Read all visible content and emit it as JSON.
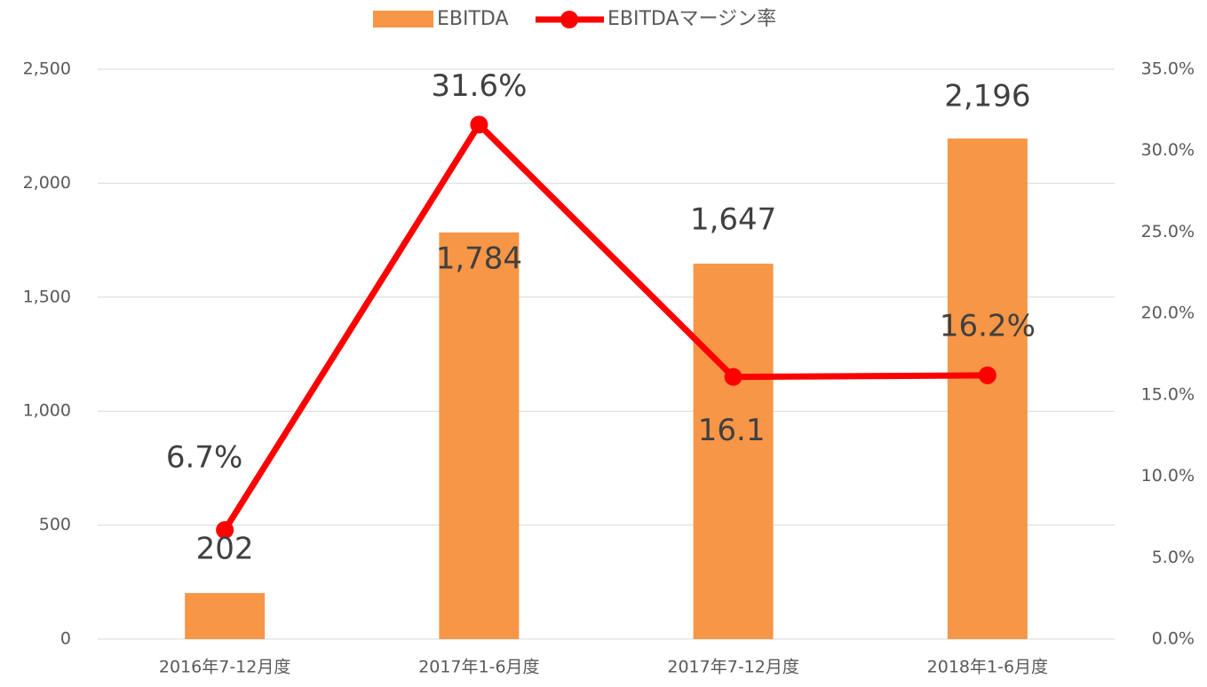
{
  "chart_data": {
    "type": "bar-line",
    "categories": [
      "2016年7-12月度",
      "2017年1-6月度",
      "2017年7-12月度",
      "2018年1-6月度"
    ],
    "series": [
      {
        "name": "EBITDA",
        "type": "bar",
        "color": "#f79646",
        "values": [
          202,
          1784,
          1647,
          2196
        ],
        "value_labels": [
          "202",
          "1,784",
          "1,647",
          "2,196"
        ]
      },
      {
        "name": "EBITDAマージン率",
        "type": "line",
        "axis": "y2",
        "color": "#ff0000",
        "values": [
          6.7,
          31.6,
          16.1,
          16.2
        ],
        "value_labels": [
          "6.7%",
          "31.6%",
          "16.1",
          "16.2%"
        ]
      }
    ],
    "ylim": [
      0,
      2500
    ],
    "yticks": [
      0,
      500,
      {
        "value": 1000,
        "label": "1,000"
      },
      {
        "value": 1500,
        "label": "1,500"
      },
      {
        "value": 2000,
        "label": "2,000"
      },
      {
        "value": 2500,
        "label": "2,500"
      }
    ],
    "y2lim": [
      0,
      35
    ],
    "y2ticks": [
      {
        "value": 0,
        "label": "0.0%"
      },
      {
        "value": 5,
        "label": "5.0%"
      },
      {
        "value": 10,
        "label": "10.0%"
      },
      {
        "value": 15,
        "label": "15.0%"
      },
      {
        "value": 20,
        "label": "20.0%"
      },
      {
        "value": 25,
        "label": "25.0%"
      },
      {
        "value": 30,
        "label": "30.0%"
      },
      {
        "value": 35,
        "label": "35.0%"
      }
    ],
    "grid": true,
    "legend": "top"
  }
}
